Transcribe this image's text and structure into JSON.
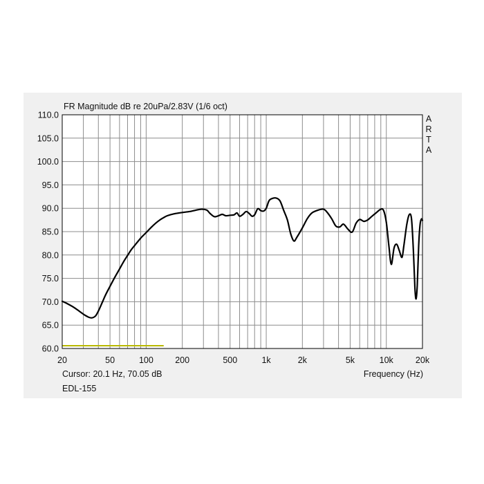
{
  "chart_data": {
    "type": "line",
    "title": "FR Magnitude dB re 20uPa/2.83V (1/6 oct)",
    "xlabel": "Frequency (Hz)",
    "ylabel": "",
    "xscale": "log",
    "xlim": [
      20,
      20000
    ],
    "ylim": [
      60,
      110
    ],
    "grid": true,
    "y_ticks": [
      "110.0",
      "105.0",
      "100.0",
      "95.0",
      "90.0",
      "85.0",
      "80.0",
      "75.0",
      "70.0",
      "65.0",
      "60.0"
    ],
    "x_ticks": [
      {
        "value": 20,
        "label": "20"
      },
      {
        "value": 50,
        "label": "50"
      },
      {
        "value": 100,
        "label": "100"
      },
      {
        "value": 200,
        "label": "200"
      },
      {
        "value": 500,
        "label": "500"
      },
      {
        "value": 1000,
        "label": "1k"
      },
      {
        "value": 2000,
        "label": "2k"
      },
      {
        "value": 5000,
        "label": "5k"
      },
      {
        "value": 10000,
        "label": "10k"
      },
      {
        "value": 20000,
        "label": "20k"
      }
    ],
    "series": [
      {
        "color": "#000000",
        "points": [
          [
            20,
            70.1
          ],
          [
            22,
            69.6
          ],
          [
            25,
            68.8
          ],
          [
            28,
            67.9
          ],
          [
            31,
            67.1
          ],
          [
            34,
            66.6
          ],
          [
            36,
            66.6
          ],
          [
            38,
            67.0
          ],
          [
            40,
            68.0
          ],
          [
            43,
            69.8
          ],
          [
            46,
            71.5
          ],
          [
            50,
            73.3
          ],
          [
            55,
            75.3
          ],
          [
            60,
            77.0
          ],
          [
            65,
            78.6
          ],
          [
            70,
            79.9
          ],
          [
            75,
            81.1
          ],
          [
            80,
            82.0
          ],
          [
            90,
            83.6
          ],
          [
            100,
            84.8
          ],
          [
            110,
            85.9
          ],
          [
            120,
            86.8
          ],
          [
            130,
            87.5
          ],
          [
            140,
            88.0
          ],
          [
            150,
            88.4
          ],
          [
            170,
            88.8
          ],
          [
            200,
            89.1
          ],
          [
            230,
            89.3
          ],
          [
            260,
            89.6
          ],
          [
            290,
            89.8
          ],
          [
            320,
            89.6
          ],
          [
            340,
            88.9
          ],
          [
            370,
            88.2
          ],
          [
            400,
            88.4
          ],
          [
            430,
            88.7
          ],
          [
            460,
            88.4
          ],
          [
            500,
            88.5
          ],
          [
            540,
            88.6
          ],
          [
            570,
            89.0
          ],
          [
            600,
            88.3
          ],
          [
            640,
            88.7
          ],
          [
            680,
            89.3
          ],
          [
            720,
            88.9
          ],
          [
            760,
            88.3
          ],
          [
            800,
            88.6
          ],
          [
            850,
            89.9
          ],
          [
            900,
            89.5
          ],
          [
            950,
            89.4
          ],
          [
            1000,
            90.0
          ],
          [
            1050,
            91.5
          ],
          [
            1100,
            92.0
          ],
          [
            1200,
            92.2
          ],
          [
            1300,
            91.6
          ],
          [
            1400,
            89.5
          ],
          [
            1500,
            87.5
          ],
          [
            1600,
            84.5
          ],
          [
            1700,
            83.0
          ],
          [
            1800,
            83.8
          ],
          [
            2000,
            85.8
          ],
          [
            2200,
            87.8
          ],
          [
            2400,
            89.0
          ],
          [
            2700,
            89.6
          ],
          [
            3000,
            89.8
          ],
          [
            3200,
            89.2
          ],
          [
            3500,
            87.8
          ],
          [
            3800,
            86.2
          ],
          [
            4100,
            86.0
          ],
          [
            4400,
            86.6
          ],
          [
            4800,
            85.5
          ],
          [
            5200,
            84.9
          ],
          [
            5600,
            86.8
          ],
          [
            6000,
            87.6
          ],
          [
            6500,
            87.2
          ],
          [
            7000,
            87.5
          ],
          [
            7600,
            88.3
          ],
          [
            8200,
            89.0
          ],
          [
            9000,
            89.8
          ],
          [
            9500,
            89.5
          ],
          [
            10000,
            87.0
          ],
          [
            10500,
            82.0
          ],
          [
            11000,
            78.0
          ],
          [
            11600,
            81.5
          ],
          [
            12200,
            82.3
          ],
          [
            12800,
            81.0
          ],
          [
            13500,
            79.5
          ],
          [
            14000,
            82.0
          ],
          [
            14800,
            86.5
          ],
          [
            15500,
            88.6
          ],
          [
            16200,
            87.8
          ],
          [
            16800,
            81.0
          ],
          [
            17300,
            73.0
          ],
          [
            17700,
            70.6
          ],
          [
            18100,
            73.5
          ],
          [
            18600,
            82.0
          ],
          [
            19100,
            86.5
          ],
          [
            19600,
            87.7
          ],
          [
            20000,
            87.4
          ]
        ]
      }
    ],
    "annotations": [
      {
        "color": "#b8b800",
        "x_start": 20,
        "x_end": 140,
        "y": 60.6
      }
    ]
  },
  "cursor_readout": "Cursor: 20.1 Hz, 70.05 dB",
  "series_label": "EDL-155",
  "brand_letters": [
    "A",
    "R",
    "T",
    "A"
  ]
}
